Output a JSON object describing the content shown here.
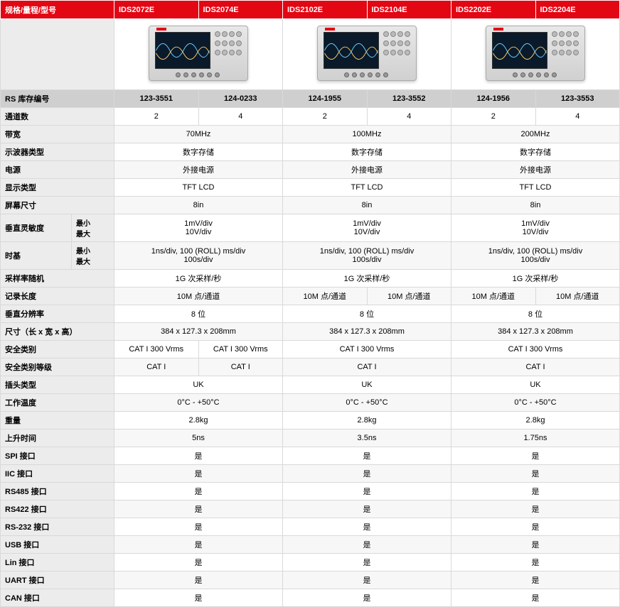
{
  "colors": {
    "header_bg": "#e30613",
    "header_fg": "#ffffff",
    "label_bg": "#ececec",
    "stock_bg": "#cfcfcf",
    "row_alt": "#f7f7f7",
    "border": "#d9d9d9"
  },
  "header": {
    "spec_label": "规格/量程/型号",
    "models": [
      "IDS2072E",
      "IDS2074E",
      "IDS2102E",
      "IDS2104E",
      "IDS2202E",
      "IDS2204E"
    ]
  },
  "stock": {
    "label": "RS 库存编号",
    "values": [
      "123-3551",
      "124-0233",
      "124-1955",
      "123-3552",
      "124-1956",
      "123-3553"
    ]
  },
  "rows": [
    {
      "label": "通道数",
      "cells": [
        "2",
        "4",
        "2",
        "4",
        "2",
        "4"
      ],
      "span": [
        1,
        1,
        1,
        1,
        1,
        1
      ]
    },
    {
      "label": "带宽",
      "cells": [
        "70MHz",
        "100MHz",
        "200MHz"
      ],
      "span": [
        2,
        2,
        2
      ]
    },
    {
      "label": "示波器类型",
      "cells": [
        "数字存储",
        "数字存储",
        "数字存储"
      ],
      "span": [
        2,
        2,
        2
      ]
    },
    {
      "label": "电源",
      "cells": [
        "外接电源",
        "外接电源",
        "外接电源"
      ],
      "span": [
        2,
        2,
        2
      ]
    },
    {
      "label": "显示类型",
      "cells": [
        "TFT LCD",
        "TFT LCD",
        "TFT LCD"
      ],
      "span": [
        2,
        2,
        2
      ]
    },
    {
      "label": "屏幕尺寸",
      "cells": [
        "8in",
        "8in",
        "8in"
      ],
      "span": [
        2,
        2,
        2
      ]
    },
    {
      "label": "垂直灵敏度",
      "sublabel": "最小<br>最大",
      "cells": [
        "1mV/div<br>10V/div",
        "1mV/div<br>10V/div",
        "1mV/div<br>10V/div"
      ],
      "span": [
        2,
        2,
        2
      ]
    },
    {
      "label": "时基",
      "sublabel": "最小<br>最大",
      "cells": [
        "1ns/div, 100 (ROLL) ms/div<br>100s/div",
        "1ns/div, 100 (ROLL) ms/div<br>100s/div",
        "1ns/div, 100 (ROLL) ms/div<br>100s/div"
      ],
      "span": [
        2,
        2,
        2
      ]
    },
    {
      "label": "采样率随机",
      "cells": [
        "1G 次采样/秒",
        "1G 次采样/秒",
        "1G 次采样/秒"
      ],
      "span": [
        2,
        2,
        2
      ]
    },
    {
      "label": "记录长度",
      "cells": [
        "10M 点/通道",
        "10M 点/通道",
        "10M 点/通道",
        "10M 点/通道",
        "10M 点/通道"
      ],
      "span": [
        2,
        1,
        1,
        1,
        1
      ]
    },
    {
      "label": "垂直分辨率",
      "cells": [
        "8 位",
        "8 位",
        "8 位"
      ],
      "span": [
        2,
        2,
        2
      ]
    },
    {
      "label": "尺寸（长 x 宽 x 高）",
      "cells": [
        "384 x 127.3 x 208mm",
        "384 x 127.3 x 208mm",
        "384 x 127.3 x 208mm"
      ],
      "span": [
        2,
        2,
        2
      ]
    },
    {
      "label": "安全类别",
      "cells": [
        "CAT I 300 Vrms",
        "CAT I 300 Vrms",
        "CAT I 300 Vrms",
        "CAT I 300 Vrms"
      ],
      "span": [
        1,
        1,
        2,
        2
      ]
    },
    {
      "label": "安全类别等级",
      "cells": [
        "CAT I",
        "CAT I",
        "CAT I",
        "CAT I"
      ],
      "span": [
        1,
        1,
        2,
        2
      ]
    },
    {
      "label": "插头类型",
      "cells": [
        "UK",
        "UK",
        "UK"
      ],
      "span": [
        2,
        2,
        2
      ]
    },
    {
      "label": "工作温度",
      "cells": [
        "0°C - +50°C",
        "0°C - +50°C",
        "0°C - +50°C"
      ],
      "span": [
        2,
        2,
        2
      ]
    },
    {
      "label": "重量",
      "cells": [
        "2.8kg",
        "2.8kg",
        "2.8kg"
      ],
      "span": [
        2,
        2,
        2
      ]
    },
    {
      "label": "上升时间",
      "cells": [
        "5ns",
        "3.5ns",
        "1.75ns"
      ],
      "span": [
        2,
        2,
        2
      ]
    },
    {
      "label": "SPI 接口",
      "cells": [
        "是",
        "是",
        "是"
      ],
      "span": [
        2,
        2,
        2
      ]
    },
    {
      "label": "IIC 接口",
      "cells": [
        "是",
        "是",
        "是"
      ],
      "span": [
        2,
        2,
        2
      ]
    },
    {
      "label": "RS485 接口",
      "cells": [
        "是",
        "是",
        "是"
      ],
      "span": [
        2,
        2,
        2
      ]
    },
    {
      "label": "RS422 接口",
      "cells": [
        "是",
        "是",
        "是"
      ],
      "span": [
        2,
        2,
        2
      ]
    },
    {
      "label": "RS-232 接口",
      "cells": [
        "是",
        "是",
        "是"
      ],
      "span": [
        2,
        2,
        2
      ]
    },
    {
      "label": "USB 接口",
      "cells": [
        "是",
        "是",
        "是"
      ],
      "span": [
        2,
        2,
        2
      ]
    },
    {
      "label": "Lin 接口",
      "cells": [
        "是",
        "是",
        "是"
      ],
      "span": [
        2,
        2,
        2
      ]
    },
    {
      "label": "UART 接口",
      "cells": [
        "是",
        "是",
        "是"
      ],
      "span": [
        2,
        2,
        2
      ]
    },
    {
      "label": "CAN 接口",
      "cells": [
        "是",
        "是",
        "是"
      ],
      "span": [
        2,
        2,
        2
      ]
    }
  ]
}
